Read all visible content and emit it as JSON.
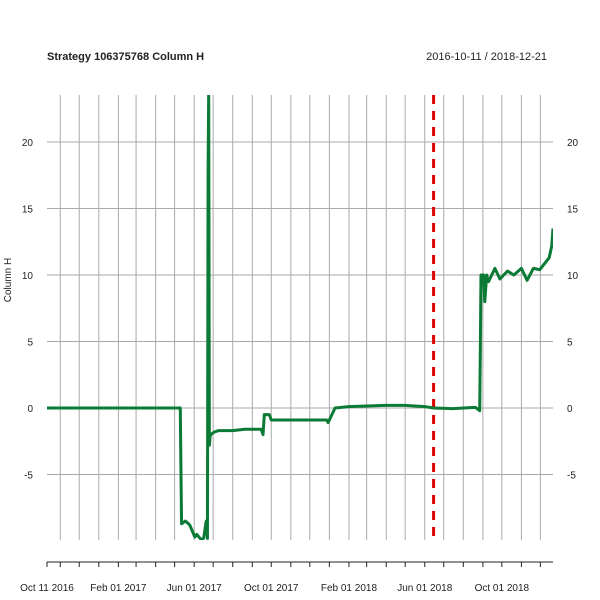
{
  "chart_data": {
    "type": "line",
    "title": "Strategy 106375768 Column H",
    "date_range": "2016-10-11 / 2018-12-21",
    "ylabel": "Column H",
    "xlabel": "",
    "x_tick_labels": [
      "Oct 11 2016",
      "Feb 01 2017",
      "Jun 01 2017",
      "Oct 01 2017",
      "Feb 01 2018",
      "Jun 01 2018",
      "Oct 01 2018"
    ],
    "y_tick_labels": [
      "-5",
      "0",
      "5",
      "10",
      "15",
      "20"
    ],
    "ylim": [
      -10,
      24
    ],
    "xlim": [
      "2016-10-11",
      "2018-12-21"
    ],
    "grid": true,
    "vertical_marker": {
      "x": "2018-06-15",
      "style": "dashed",
      "color": "#dd0000"
    },
    "colors": {
      "line": "#0a7a35",
      "marker": "#dd0000",
      "grid": "#aaaaaa"
    },
    "series": [
      {
        "x": [
          "2016-10-11",
          "2017-05-10",
          "2017-05-11",
          "2017-05-12",
          "2017-05-18",
          "2017-05-25",
          "2017-06-02",
          "2017-06-05",
          "2017-06-12",
          "2017-06-16",
          "2017-06-20",
          "2017-06-22",
          "2017-06-23",
          "2017-06-24",
          "2017-06-25",
          "2017-06-26",
          "2017-06-27",
          "2017-07-03",
          "2017-07-10",
          "2017-08-01",
          "2017-08-20",
          "2017-09-15",
          "2017-09-18",
          "2017-09-20",
          "2017-09-28",
          "2017-10-01",
          "2017-12-20",
          "2017-12-28",
          "2017-12-30",
          "2018-01-10",
          "2018-02-01",
          "2018-03-01",
          "2018-04-01",
          "2018-05-01",
          "2018-06-01",
          "2018-06-15",
          "2018-07-15",
          "2018-08-20",
          "2018-08-27",
          "2018-08-28",
          "2018-08-29",
          "2018-09-02",
          "2018-09-04",
          "2018-09-07",
          "2018-09-10",
          "2018-09-20",
          "2018-09-28",
          "2018-10-10",
          "2018-10-20",
          "2018-11-01",
          "2018-11-10",
          "2018-11-20",
          "2018-11-30",
          "2018-12-10",
          "2018-12-15",
          "2018-12-19",
          "2018-12-21"
        ],
        "y": [
          0,
          0,
          -4.5,
          -8.7,
          -8.5,
          -8.8,
          -9.7,
          -9.5,
          -9.9,
          -9.8,
          -8.5,
          -9.8,
          18,
          24,
          -2.8,
          -2.2,
          -2,
          -1.8,
          -1.7,
          -1.7,
          -1.6,
          -1.6,
          -2.0,
          -0.5,
          -0.5,
          -0.9,
          -0.9,
          -0.9,
          -1.1,
          0,
          0.1,
          0.15,
          0.2,
          0.2,
          0.1,
          0,
          -0.05,
          0.05,
          -0.2,
          4.5,
          10,
          10,
          8.0,
          10,
          9.5,
          10.5,
          9.7,
          10.3,
          10.0,
          10.5,
          9.6,
          10.5,
          10.4,
          11.0,
          11.3,
          12.2,
          13.5
        ]
      }
    ]
  }
}
